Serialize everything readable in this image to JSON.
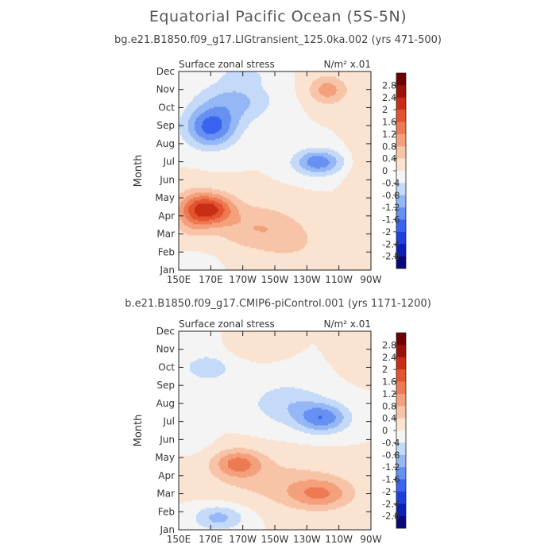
{
  "title": "Equatorial Pacific Ocean (5S-5N)",
  "chart_data": [
    {
      "type": "heatmap",
      "title": "bg.e21.B1850.f09_g17.LIGtransient_125.0ka.002 (yrs 471-500)",
      "left_label": "Surface zonal stress",
      "right_label": "N/m² x.01",
      "xlabel": "",
      "ylabel": "Month",
      "x_ticks": [
        "150E",
        "170E",
        "170W",
        "150W",
        "130W",
        "110W",
        "90W"
      ],
      "y_ticks": [
        "Jan",
        "Feb",
        "Mar",
        "Apr",
        "May",
        "Jun",
        "Jul",
        "Aug",
        "Sep",
        "Oct",
        "Nov",
        "Dec"
      ],
      "xlim": [
        150,
        270
      ],
      "ylim": [
        1,
        12
      ],
      "colorbar_labels": [
        "2.8",
        "2.4",
        "2",
        "1.6",
        "1.2",
        "0.8",
        "0.4",
        "0",
        "-0.4",
        "-0.8",
        "-1.2",
        "-1.6",
        "-2",
        "-2.4",
        "-2.8"
      ],
      "features": [
        {
          "x": 170,
          "y": 4.4,
          "sx": 14,
          "sy": 0.85,
          "amp": 1.9
        },
        {
          "x": 158,
          "y": 4.2,
          "sx": 11,
          "sy": 1.2,
          "amp": 0.9
        },
        {
          "x": 198,
          "y": 3.4,
          "sx": 26,
          "sy": 1.3,
          "amp": 0.75
        },
        {
          "x": 222,
          "y": 2.5,
          "sx": 20,
          "sy": 1.2,
          "amp": 0.35
        },
        {
          "x": 170,
          "y": 8.9,
          "sx": 16,
          "sy": 1.1,
          "amp": -1.7
        },
        {
          "x": 185,
          "y": 10.4,
          "sx": 24,
          "sy": 1.2,
          "amp": -0.9
        },
        {
          "x": 237,
          "y": 7.0,
          "sx": 15,
          "sy": 0.7,
          "amp": -1.5
        },
        {
          "x": 243,
          "y": 11.0,
          "sx": 12,
          "sy": 0.8,
          "amp": 1.0
        },
        {
          "x": 160,
          "y": 1.3,
          "sx": 12,
          "sy": 0.6,
          "amp": -0.3
        },
        {
          "x": 190,
          "y": 11.8,
          "sx": 12,
          "sy": 0.5,
          "amp": -0.55
        },
        {
          "x": 262,
          "y": 5.5,
          "sx": 8,
          "sy": 4.0,
          "amp": 0.25
        }
      ]
    },
    {
      "type": "heatmap",
      "title": "b.e21.B1850.f09_g17.CMIP6-piControl.001 (yrs 1171-1200)",
      "left_label": "Surface zonal stress",
      "right_label": "N/m² x.01",
      "xlabel": "",
      "ylabel": "Month",
      "x_ticks": [
        "150E",
        "170E",
        "170W",
        "150W",
        "130W",
        "110W",
        "90W"
      ],
      "y_ticks": [
        "Jan",
        "Feb",
        "Mar",
        "Apr",
        "May",
        "Jun",
        "Jul",
        "Aug",
        "Sep",
        "Oct",
        "Nov",
        "Dec"
      ],
      "xlim": [
        150,
        270
      ],
      "ylim": [
        1,
        12
      ],
      "colorbar_labels": [
        "2.8",
        "2.4",
        "2",
        "1.6",
        "1.2",
        "0.8",
        "0.4",
        "0",
        "-0.4",
        "-0.8",
        "-1.2",
        "-1.6",
        "-2",
        "-2.4",
        "-2.8"
      ],
      "features": [
        {
          "x": 187,
          "y": 4.7,
          "sx": 15,
          "sy": 0.75,
          "amp": 1.25
        },
        {
          "x": 238,
          "y": 3.0,
          "sx": 20,
          "sy": 0.85,
          "amp": 1.1
        },
        {
          "x": 210,
          "y": 3.7,
          "sx": 40,
          "sy": 1.4,
          "amp": 0.5
        },
        {
          "x": 240,
          "y": 7.2,
          "sx": 16,
          "sy": 0.8,
          "amp": -1.4
        },
        {
          "x": 218,
          "y": 8.0,
          "sx": 24,
          "sy": 1.2,
          "amp": -0.7
        },
        {
          "x": 175,
          "y": 1.7,
          "sx": 16,
          "sy": 0.7,
          "amp": -0.95
        },
        {
          "x": 168,
          "y": 10.0,
          "sx": 20,
          "sy": 1.0,
          "amp": -0.55
        },
        {
          "x": 195,
          "y": 11.1,
          "sx": 14,
          "sy": 0.6,
          "amp": 0.4
        },
        {
          "x": 160,
          "y": 6.5,
          "sx": 10,
          "sy": 1.0,
          "amp": -0.3
        },
        {
          "x": 262,
          "y": 11.0,
          "sx": 10,
          "sy": 1.2,
          "amp": 0.3
        }
      ]
    }
  ]
}
